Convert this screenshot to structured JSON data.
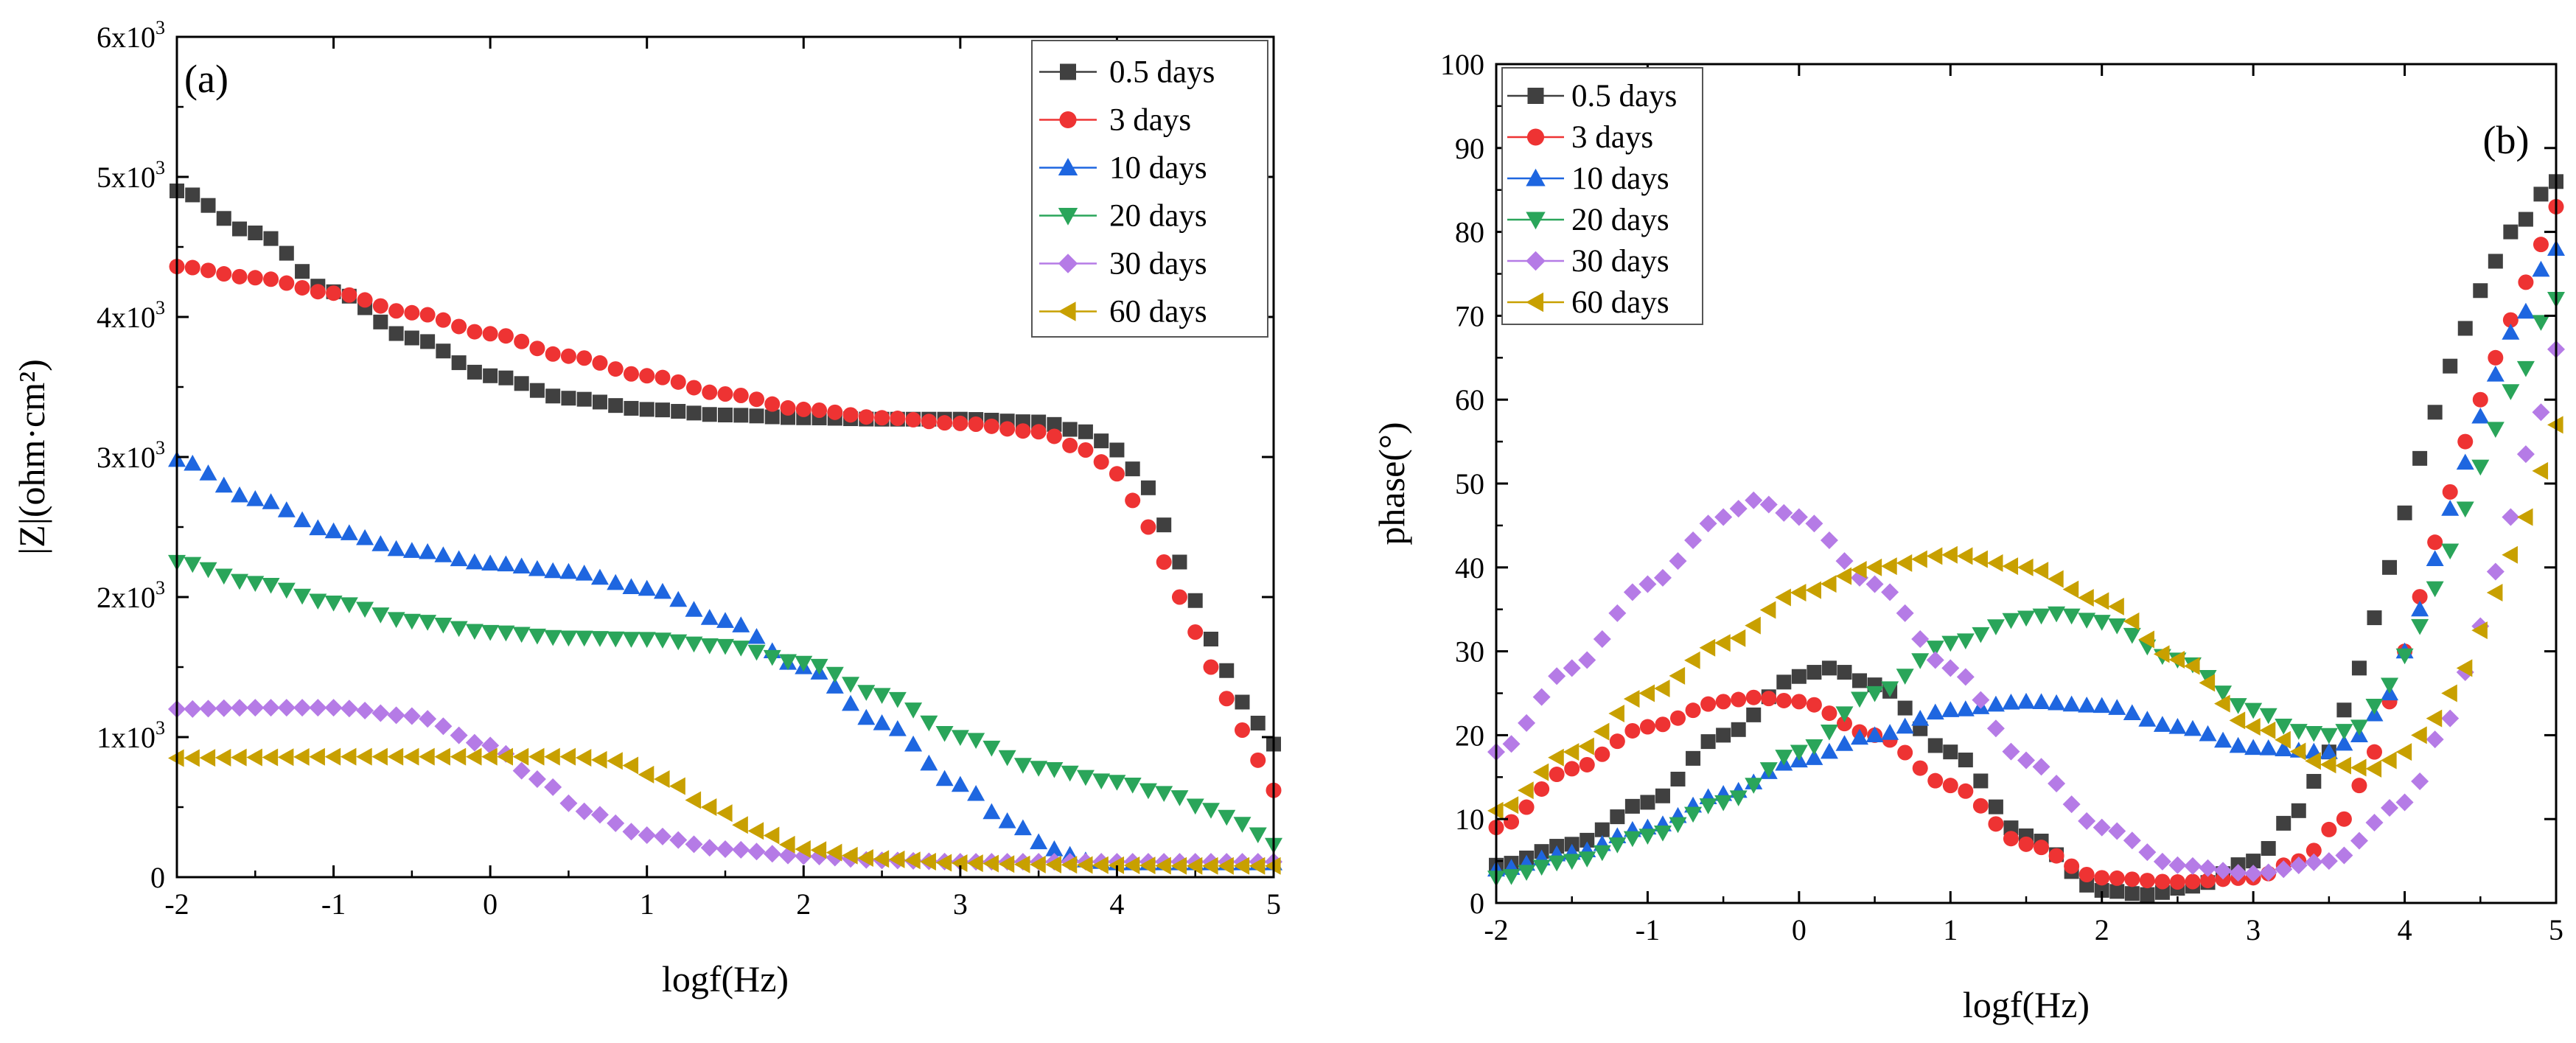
{
  "figure": {
    "panels": [
      "(a)",
      "(b)"
    ]
  },
  "chart_data": [
    {
      "type": "scatter",
      "panel": "(a)",
      "title": "",
      "xlabel": "logf(Hz)",
      "ylabel": "|Z|(ohm·cm²)",
      "xlim": [
        -2,
        5
      ],
      "ylim": [
        0,
        6000
      ],
      "xticks": [
        -2,
        -1,
        0,
        1,
        2,
        3,
        4,
        5
      ],
      "yticks": [
        {
          "value": 0,
          "base": "0",
          "exp": ""
        },
        {
          "value": 1000,
          "base": "1x10",
          "exp": "3"
        },
        {
          "value": 2000,
          "base": "2x10",
          "exp": "3"
        },
        {
          "value": 3000,
          "base": "3x10",
          "exp": "3"
        },
        {
          "value": 4000,
          "base": "4x10",
          "exp": "3"
        },
        {
          "value": 5000,
          "base": "5x10",
          "exp": "3"
        },
        {
          "value": 6000,
          "base": "6x10",
          "exp": "3"
        }
      ],
      "legend_position": "top-right",
      "series": [
        {
          "name": "0.5 days",
          "color": "#404040",
          "marker": "square",
          "points": [
            [
              -2,
              4900
            ],
            [
              -1.5,
              4600
            ],
            [
              -1,
              4180
            ],
            [
              -0.5,
              3850
            ],
            [
              0,
              3580
            ],
            [
              0.5,
              3420
            ],
            [
              1,
              3340
            ],
            [
              1.5,
              3300
            ],
            [
              2,
              3280
            ],
            [
              2.5,
              3270
            ],
            [
              3,
              3270
            ],
            [
              3.5,
              3250
            ],
            [
              3.8,
              3180
            ],
            [
              4,
              3050
            ],
            [
              4.2,
              2780
            ],
            [
              4.4,
              2250
            ],
            [
              4.6,
              1700
            ],
            [
              4.8,
              1250
            ],
            [
              5,
              950
            ]
          ]
        },
        {
          "name": "3 days",
          "color": "#ee3333",
          "marker": "circle",
          "points": [
            [
              -2,
              4360
            ],
            [
              -1.5,
              4280
            ],
            [
              -1,
              4170
            ],
            [
              -0.5,
              4030
            ],
            [
              0,
              3880
            ],
            [
              0.5,
              3720
            ],
            [
              1,
              3580
            ],
            [
              1.5,
              3450
            ],
            [
              2,
              3340
            ],
            [
              2.5,
              3280
            ],
            [
              3,
              3240
            ],
            [
              3.5,
              3180
            ],
            [
              3.8,
              3050
            ],
            [
              4,
              2880
            ],
            [
              4.2,
              2500
            ],
            [
              4.4,
              2000
            ],
            [
              4.6,
              1500
            ],
            [
              4.8,
              1050
            ],
            [
              5,
              620
            ]
          ]
        },
        {
          "name": "10 days",
          "color": "#1e66e0",
          "marker": "triangle-up",
          "points": [
            [
              -2,
              2980
            ],
            [
              -1.5,
              2700
            ],
            [
              -1,
              2470
            ],
            [
              -0.5,
              2330
            ],
            [
              0,
              2240
            ],
            [
              0.5,
              2180
            ],
            [
              1,
              2060
            ],
            [
              1.5,
              1830
            ],
            [
              2,
              1500
            ],
            [
              2.5,
              1100
            ],
            [
              3,
              660
            ],
            [
              3.3,
              400
            ],
            [
              3.6,
              200
            ],
            [
              3.8,
              120
            ],
            [
              4,
              100
            ],
            [
              4.5,
              100
            ],
            [
              5,
              100
            ]
          ]
        },
        {
          "name": "20 days",
          "color": "#2aa55a",
          "marker": "triangle-down",
          "points": [
            [
              -2,
              2250
            ],
            [
              -1.5,
              2100
            ],
            [
              -1,
              1960
            ],
            [
              -0.5,
              1830
            ],
            [
              0,
              1750
            ],
            [
              0.5,
              1710
            ],
            [
              1,
              1700
            ],
            [
              1.5,
              1650
            ],
            [
              2,
              1530
            ],
            [
              2.5,
              1300
            ],
            [
              3,
              1000
            ],
            [
              3.5,
              780
            ],
            [
              4,
              680
            ],
            [
              4.3,
              600
            ],
            [
              4.6,
              480
            ],
            [
              4.8,
              380
            ],
            [
              5,
              230
            ]
          ]
        },
        {
          "name": "30 days",
          "color": "#b57be6",
          "marker": "diamond",
          "points": [
            [
              -2,
              1200
            ],
            [
              -1.5,
              1210
            ],
            [
              -1,
              1210
            ],
            [
              -0.5,
              1150
            ],
            [
              0,
              940
            ],
            [
              0.3,
              700
            ],
            [
              0.6,
              470
            ],
            [
              1,
              300
            ],
            [
              1.5,
              200
            ],
            [
              2,
              150
            ],
            [
              2.5,
              120
            ],
            [
              3,
              110
            ],
            [
              3.5,
              110
            ],
            [
              4,
              110
            ],
            [
              4.5,
              110
            ],
            [
              5,
              110
            ]
          ]
        },
        {
          "name": "60 days",
          "color": "#c8a000",
          "marker": "triangle-left",
          "points": [
            [
              -2,
              850
            ],
            [
              -1.5,
              855
            ],
            [
              -1,
              860
            ],
            [
              -0.5,
              860
            ],
            [
              0,
              860
            ],
            [
              0.5,
              860
            ],
            [
              0.8,
              830
            ],
            [
              1.1,
              700
            ],
            [
              1.4,
              500
            ],
            [
              1.7,
              330
            ],
            [
              2,
              200
            ],
            [
              2.5,
              130
            ],
            [
              3,
              100
            ],
            [
              3.5,
              90
            ],
            [
              4,
              85
            ],
            [
              4.5,
              80
            ],
            [
              5,
              80
            ]
          ]
        }
      ]
    },
    {
      "type": "scatter",
      "panel": "(b)",
      "title": "",
      "xlabel": "logf(Hz)",
      "ylabel": "phase(°)",
      "xlim": [
        -2,
        5
      ],
      "ylim": [
        0,
        100
      ],
      "xticks": [
        -2,
        -1,
        0,
        1,
        2,
        3,
        4,
        5
      ],
      "yticks": [
        0,
        10,
        20,
        30,
        40,
        50,
        60,
        70,
        80,
        90,
        100
      ],
      "legend_position": "top-left",
      "series": [
        {
          "name": "0.5 days",
          "color": "#404040",
          "marker": "square",
          "points": [
            [
              -2,
              4.5
            ],
            [
              -1.5,
              7
            ],
            [
              -1,
              12
            ],
            [
              -0.5,
              20
            ],
            [
              0,
              27
            ],
            [
              0.2,
              28
            ],
            [
              0.5,
              26
            ],
            [
              1,
              18
            ],
            [
              1.5,
              8
            ],
            [
              2,
              1.5
            ],
            [
              2.3,
              1
            ],
            [
              2.6,
              2
            ],
            [
              3,
              5
            ],
            [
              3.3,
              11
            ],
            [
              3.5,
              18
            ],
            [
              3.7,
              28
            ],
            [
              3.9,
              40
            ],
            [
              4.1,
              53
            ],
            [
              4.3,
              64
            ],
            [
              4.5,
              73
            ],
            [
              4.7,
              80
            ],
            [
              5,
              86
            ]
          ]
        },
        {
          "name": "3 days",
          "color": "#ee3333",
          "marker": "circle",
          "points": [
            [
              -2,
              9
            ],
            [
              -1.5,
              16
            ],
            [
              -1,
              21
            ],
            [
              -0.5,
              24
            ],
            [
              -0.3,
              24.5
            ],
            [
              0,
              24
            ],
            [
              0.5,
              20
            ],
            [
              1,
              14
            ],
            [
              1.5,
              7
            ],
            [
              2,
              3
            ],
            [
              2.5,
              2.5
            ],
            [
              3,
              3
            ],
            [
              3.3,
              5
            ],
            [
              3.6,
              10
            ],
            [
              3.8,
              18
            ],
            [
              4,
              30
            ],
            [
              4.2,
              43
            ],
            [
              4.4,
              55
            ],
            [
              4.6,
              65
            ],
            [
              4.8,
              74
            ],
            [
              5,
              83
            ]
          ]
        },
        {
          "name": "10 days",
          "color": "#1e66e0",
          "marker": "triangle-up",
          "points": [
            [
              -2,
              4
            ],
            [
              -1.5,
              6
            ],
            [
              -1,
              9
            ],
            [
              -0.5,
              13
            ],
            [
              0,
              17
            ],
            [
              0.5,
              20
            ],
            [
              1,
              23
            ],
            [
              1.5,
              24
            ],
            [
              2,
              23.5
            ],
            [
              2.5,
              21
            ],
            [
              3,
              18.5
            ],
            [
              3.5,
              18
            ],
            [
              3.7,
              20
            ],
            [
              3.9,
              25
            ],
            [
              4.1,
              35
            ],
            [
              4.3,
              47
            ],
            [
              4.5,
              58
            ],
            [
              4.7,
              68
            ],
            [
              5,
              78
            ]
          ]
        },
        {
          "name": "20 days",
          "color": "#2aa55a",
          "marker": "triangle-down",
          "points": [
            [
              -2,
              3
            ],
            [
              -1.5,
              5
            ],
            [
              -1,
              8
            ],
            [
              -0.5,
              12
            ],
            [
              0,
              18
            ],
            [
              0.5,
              25
            ],
            [
              1,
              31
            ],
            [
              1.5,
              34
            ],
            [
              1.7,
              34.5
            ],
            [
              2,
              33.5
            ],
            [
              2.5,
              29
            ],
            [
              3,
              23
            ],
            [
              3.3,
              20.5
            ],
            [
              3.5,
              20
            ],
            [
              3.7,
              21
            ],
            [
              3.9,
              26
            ],
            [
              4.1,
              33
            ],
            [
              4.3,
              42
            ],
            [
              4.5,
              52
            ],
            [
              4.7,
              61
            ],
            [
              5,
              72
            ]
          ]
        },
        {
          "name": "30 days",
          "color": "#b57be6",
          "marker": "diamond",
          "points": [
            [
              -2,
              18
            ],
            [
              -1.5,
              28
            ],
            [
              -1,
              38
            ],
            [
              -0.5,
              46
            ],
            [
              -0.3,
              48
            ],
            [
              0,
              46
            ],
            [
              0.5,
              38
            ],
            [
              1,
              28
            ],
            [
              1.5,
              17
            ],
            [
              2,
              9
            ],
            [
              2.5,
              4.5
            ],
            [
              3,
              3.5
            ],
            [
              3.5,
              5
            ],
            [
              4,
              12
            ],
            [
              4.3,
              22
            ],
            [
              4.5,
              33
            ],
            [
              4.7,
              46
            ],
            [
              4.85,
              56
            ],
            [
              5,
              66
            ]
          ]
        },
        {
          "name": "60 days",
          "color": "#c8a000",
          "marker": "triangle-left",
          "points": [
            [
              -2,
              11
            ],
            [
              -1.5,
              18
            ],
            [
              -1,
              25
            ],
            [
              -0.5,
              31
            ],
            [
              0,
              37
            ],
            [
              0.5,
              40
            ],
            [
              1,
              41.5
            ],
            [
              1.5,
              40
            ],
            [
              2,
              36
            ],
            [
              2.5,
              29
            ],
            [
              3,
              21
            ],
            [
              3.5,
              16.5
            ],
            [
              3.8,
              16
            ],
            [
              4,
              18
            ],
            [
              4.2,
              22
            ],
            [
              4.4,
              28
            ],
            [
              4.6,
              37
            ],
            [
              4.8,
              46
            ],
            [
              5,
              57
            ]
          ]
        }
      ]
    }
  ]
}
